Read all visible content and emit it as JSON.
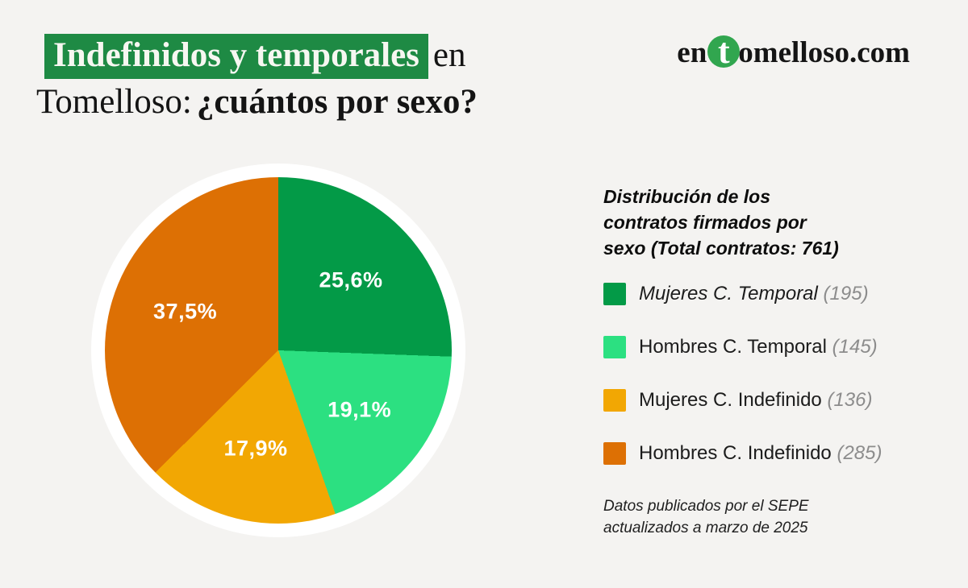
{
  "page": {
    "background_color": "#f4f3f1"
  },
  "header": {
    "title_line1_highlight": "Indefinidos y temporales",
    "title_line1_rest": "en",
    "title_line2_regular": "Tomelloso:",
    "title_line2_bold": "¿cuántos por sexo?",
    "highlight_color": "#1e8a44"
  },
  "logo": {
    "prefix": "en",
    "circle_letter": "t",
    "suffix": "omelloso.com",
    "circle_color": "#31a64f"
  },
  "chart_data": {
    "type": "pie",
    "title": "Distribución de los contratos firmados por sexo (Total contratos: 761)",
    "title_lines": [
      "Distribución de los",
      "contratos firmados por",
      "sexo (Total contratos: 761)"
    ],
    "total_contracts": 761,
    "start_angle_deg": 0,
    "direction": "clockwise",
    "legend_position": "right",
    "slices": [
      {
        "label": "Mujeres C. Temporal",
        "count": 195,
        "count_label": "(195)",
        "value": 25.6,
        "pct_label": "25,6%",
        "color": "#039a47",
        "italic_label": true
      },
      {
        "label": "Hombres C. Temporal",
        "count": 145,
        "count_label": "(145)",
        "value": 19.1,
        "pct_label": "19,1%",
        "color": "#2ce081",
        "italic_label": false
      },
      {
        "label": "Mujeres C. Indefinido",
        "count": 136,
        "count_label": "(136)",
        "value": 17.9,
        "pct_label": "17,9%",
        "color": "#f2a703",
        "italic_label": false
      },
      {
        "label": "Hombres C. Indefinido",
        "count": 285,
        "count_label": "(285)",
        "value": 37.5,
        "pct_label": "37,5%",
        "color": "#dd7004",
        "italic_label": false
      }
    ]
  },
  "source_note": {
    "lines": [
      "Datos publicados por el SEPE",
      "actualizados a marzo de 2025"
    ]
  }
}
